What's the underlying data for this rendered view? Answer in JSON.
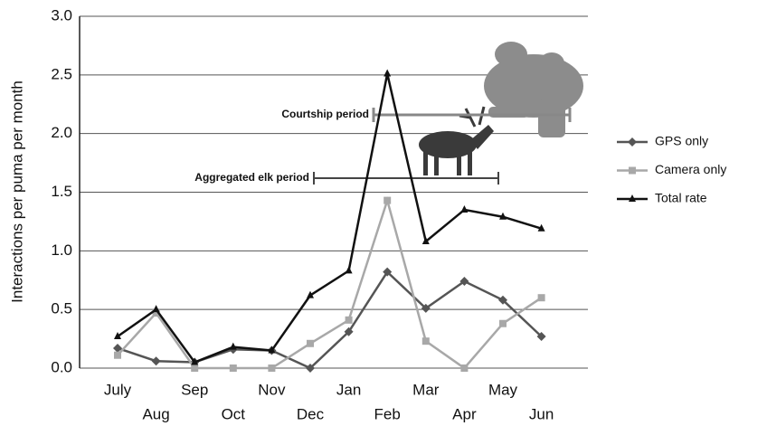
{
  "chart_data": {
    "type": "line",
    "y_label": "Interactions per puma per month",
    "categories": [
      "July",
      "Aug",
      "Sep",
      "Oct",
      "Nov",
      "Dec",
      "Jan",
      "Feb",
      "Mar",
      "Apr",
      "May",
      "Jun"
    ],
    "series": [
      {
        "name": "GPS only",
        "color": "#555555",
        "marker": "diamond",
        "values": [
          0.17,
          0.06,
          0.05,
          0.16,
          0.15,
          0.0,
          0.31,
          0.82,
          0.51,
          0.74,
          0.58,
          0.27
        ]
      },
      {
        "name": "Camera only",
        "color": "#a8a8a8",
        "marker": "square",
        "values": [
          0.11,
          0.47,
          0.0,
          0.0,
          0.0,
          0.21,
          0.41,
          1.43,
          0.23,
          0.0,
          0.38,
          0.6
        ]
      },
      {
        "name": "Total rate",
        "color": "#111111",
        "marker": "triangle",
        "values": [
          0.27,
          0.5,
          0.05,
          0.18,
          0.15,
          0.62,
          0.83,
          2.51,
          1.08,
          1.35,
          1.29,
          1.19
        ]
      }
    ],
    "ylim": [
      0,
      3
    ],
    "yticks": [
      {
        "value": 0,
        "label": "0.0"
      },
      0.5,
      {
        "value": 1,
        "label": "1.0"
      },
      1.5,
      {
        "value": 2,
        "label": "2.0"
      },
      2.5,
      {
        "value": 3,
        "label": "3.0"
      }
    ],
    "grid": true,
    "legend": "right",
    "annotations": [
      "Courtship period",
      "Aggregated elk period"
    ]
  }
}
